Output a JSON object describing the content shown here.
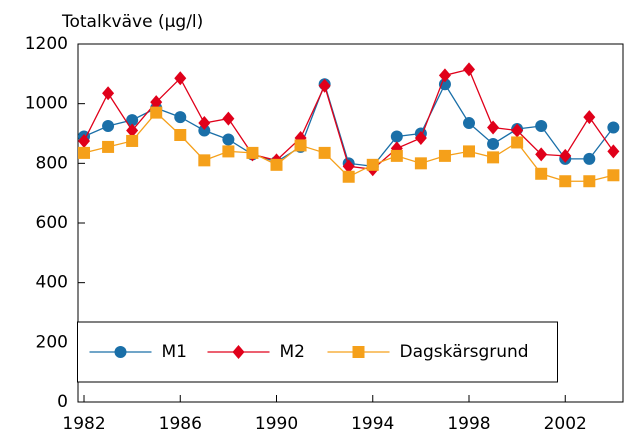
{
  "chart_data": {
    "type": "line",
    "title": "Totalkväve (µg/l)",
    "x": [
      1982,
      1983,
      1984,
      1985,
      1986,
      1987,
      1988,
      1989,
      1990,
      1991,
      1992,
      1993,
      1994,
      1995,
      1996,
      1997,
      1998,
      1999,
      2000,
      2001,
      2002,
      2003,
      2004
    ],
    "series": [
      {
        "name": "M1",
        "color": "#1a6fa8",
        "marker": "circle",
        "values": [
          890,
          925,
          945,
          985,
          955,
          910,
          880,
          830,
          805,
          855,
          1065,
          800,
          790,
          890,
          900,
          1065,
          935,
          865,
          915,
          925,
          815,
          815,
          920
        ]
      },
      {
        "name": "M2",
        "color": "#e0001a",
        "marker": "diamond",
        "values": [
          875,
          1035,
          910,
          1005,
          1085,
          935,
          950,
          830,
          810,
          885,
          1060,
          790,
          780,
          850,
          885,
          1095,
          1115,
          920,
          910,
          830,
          825,
          955,
          840
        ]
      },
      {
        "name": "Dagskärsgrund",
        "color": "#f5a01a",
        "marker": "square",
        "values": [
          835,
          855,
          875,
          970,
          895,
          810,
          840,
          835,
          795,
          860,
          835,
          755,
          795,
          825,
          800,
          825,
          840,
          820,
          870,
          765,
          740,
          740,
          760
        ]
      }
    ],
    "xlim": [
      1981.75,
      2004.4
    ],
    "xticks": [
      1982,
      1986,
      1990,
      1994,
      1998,
      2002
    ],
    "ylim": [
      0,
      1200
    ],
    "yticks": [
      0,
      200,
      400,
      600,
      800,
      1000,
      1200
    ],
    "legend": "lower center"
  }
}
